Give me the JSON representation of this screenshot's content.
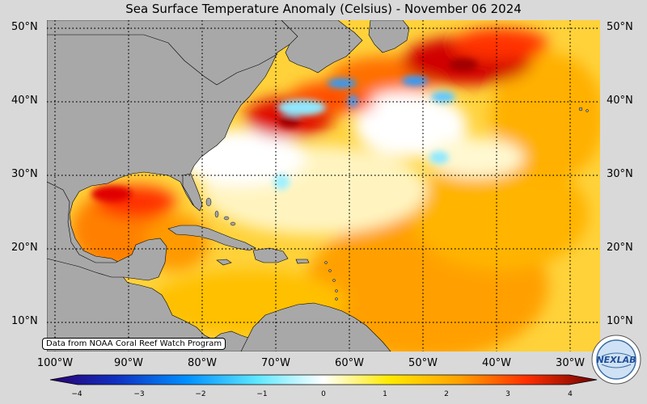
{
  "title": "Sea Surface Temperature Anomaly (Celsius) - November 06 2024",
  "attribution": "Data from NOAA Coral Reef Watch Program",
  "lat_labels": [
    "50°N",
    "40°N",
    "30°N",
    "20°N",
    "10°N"
  ],
  "lon_labels": [
    "100°W",
    "90°W",
    "80°W",
    "70°W",
    "60°W",
    "50°W",
    "40°W",
    "30°W"
  ],
  "colorbar": {
    "min": -4,
    "max": 4,
    "ticks": [
      "−4",
      "−3",
      "−2",
      "−1",
      "0",
      "1",
      "2",
      "3",
      "4"
    ],
    "colors": [
      "#2b0070",
      "#1030c0",
      "#0090ff",
      "#60e8ff",
      "#ffffff",
      "#ffea00",
      "#ffa000",
      "#ff4000",
      "#c00000",
      "#700000"
    ]
  },
  "colors": {
    "land": "#a8a8a8",
    "background": "#d9d9d9",
    "grid": "#000000"
  },
  "logo": {
    "text": "NEXLAB",
    "icon": "nexlab-globe-logo"
  }
}
